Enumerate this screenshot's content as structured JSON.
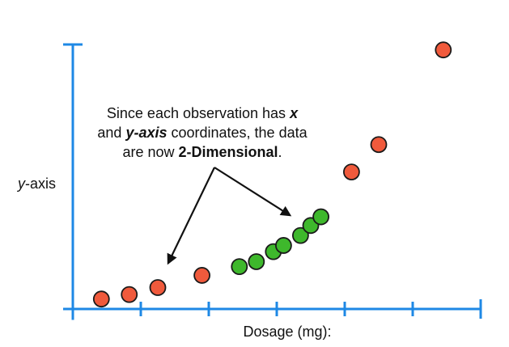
{
  "chart_data": {
    "type": "scatter",
    "title": "",
    "xlabel": "Dosage (mg):",
    "ylabel": {
      "italic_part": "y",
      "rest": "-axis"
    },
    "grid": false,
    "legend": "none",
    "xlim": [
      0,
      6
    ],
    "ylim": [
      0,
      10
    ],
    "x_ticks": [
      1,
      2,
      3,
      4,
      5
    ],
    "series": [
      {
        "name": "red",
        "color": "#f05a3c",
        "points": [
          {
            "x": 0.42,
            "y": 0.4
          },
          {
            "x": 0.83,
            "y": 0.58
          },
          {
            "x": 1.25,
            "y": 0.86
          },
          {
            "x": 1.9,
            "y": 1.35
          },
          {
            "x": 4.1,
            "y": 5.5
          },
          {
            "x": 4.5,
            "y": 6.6
          },
          {
            "x": 5.45,
            "y": 10.4
          }
        ]
      },
      {
        "name": "green",
        "color": "#3eb82c",
        "points": [
          {
            "x": 2.45,
            "y": 1.7
          },
          {
            "x": 2.7,
            "y": 1.9
          },
          {
            "x": 2.95,
            "y": 2.3
          },
          {
            "x": 3.1,
            "y": 2.55
          },
          {
            "x": 3.35,
            "y": 2.95
          },
          {
            "x": 3.5,
            "y": 3.35
          },
          {
            "x": 3.65,
            "y": 3.7
          }
        ]
      }
    ],
    "annotation": {
      "line1": [
        {
          "text": "Since each observation has ",
          "style": "normal"
        },
        {
          "text": "x",
          "style": "bold-italic"
        }
      ],
      "line2": [
        {
          "text": "and ",
          "style": "normal"
        },
        {
          "text": "y-axis",
          "style": "bold-italic"
        },
        {
          "text": " coordinates, the data",
          "style": "normal"
        }
      ],
      "line3": [
        {
          "text": "are now ",
          "style": "normal"
        },
        {
          "text": "2-Dimensional",
          "style": "bold"
        },
        {
          "text": ".",
          "style": "normal"
        }
      ],
      "arrow_targets": [
        "red",
        "green"
      ]
    },
    "axis_color": "#1e88e5"
  }
}
